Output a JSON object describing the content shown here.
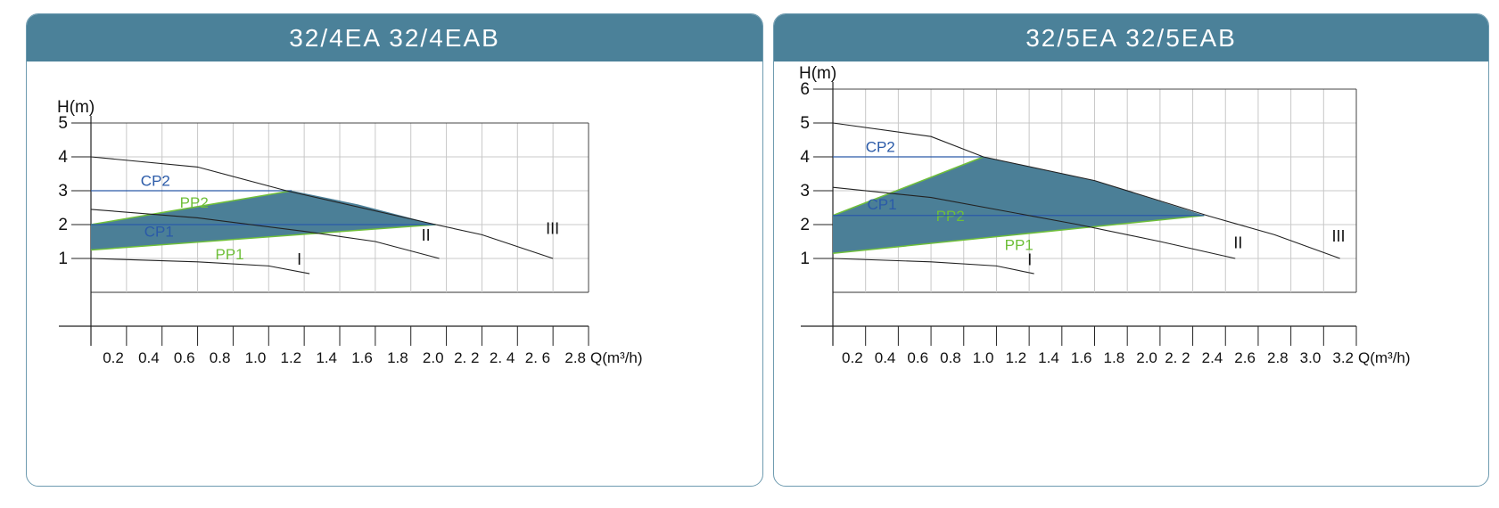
{
  "panels": [
    {
      "title": "32/4EA  32/4EAB",
      "chart_data": {
        "type": "line",
        "ylabel": "H(m)",
        "xlabel": "Q(m³/h)",
        "xlim": [
          0,
          2.8
        ],
        "ylim": [
          0,
          5
        ],
        "y_ticks": [
          "1",
          "2",
          "3",
          "4",
          "5"
        ],
        "x_ticks": [
          {
            "v": 0.2,
            "label": "0.2"
          },
          {
            "v": 0.4,
            "label": "0.4"
          },
          {
            "v": 0.6,
            "label": "0.6"
          },
          {
            "v": 0.8,
            "label": "0.8"
          },
          {
            "v": 1.0,
            "label": "1.0"
          },
          {
            "v": 1.2,
            "label": "1.2"
          },
          {
            "v": 1.4,
            "label": "1.4"
          },
          {
            "v": 1.6,
            "label": "1.6"
          },
          {
            "v": 1.8,
            "label": "1.8"
          },
          {
            "v": 2.0,
            "label": "2.0"
          },
          {
            "v": 2.2,
            "label": "2. 2"
          },
          {
            "v": 2.4,
            "label": "2. 4"
          },
          {
            "v": 2.6,
            "label": "2. 6"
          },
          {
            "v": 2.8,
            "label": "2.8"
          }
        ],
        "grid": true,
        "colors": {
          "fill": "#4b7f97",
          "cp": "#2a5aa8",
          "pp": "#6fbf3a",
          "curve": "#222222"
        },
        "curves": [
          {
            "name": "I",
            "points": [
              [
                0,
                1.0
              ],
              [
                0.6,
                0.9
              ],
              [
                1.0,
                0.78
              ],
              [
                1.23,
                0.55
              ]
            ],
            "label_at": [
              1.16,
              0.82
            ]
          },
          {
            "name": "II",
            "points": [
              [
                0,
                2.45
              ],
              [
                0.6,
                2.2
              ],
              [
                1.2,
                1.8
              ],
              [
                1.6,
                1.5
              ],
              [
                1.96,
                1.0
              ]
            ],
            "label_at": [
              1.86,
              1.52
            ]
          },
          {
            "name": "III",
            "points": [
              [
                0,
                4.0
              ],
              [
                0.6,
                3.7
              ],
              [
                1.1,
                3.0
              ],
              [
                1.94,
                2.0
              ],
              [
                2.2,
                1.7
              ],
              [
                2.6,
                1.0
              ]
            ],
            "label_at": [
              2.56,
              1.72
            ]
          }
        ],
        "cp_lines": [
          {
            "name": "CP2",
            "y": 3.0,
            "x_end": 1.13,
            "label_at": [
              0.28,
              3.15
            ]
          },
          {
            "name": "CP1",
            "y": 2.0,
            "x_end": 1.94,
            "label_at": [
              0.3,
              1.65
            ]
          }
        ],
        "pp_lines": [
          {
            "name": "PP2",
            "from": [
              0,
              2.0
            ],
            "to": [
              1.13,
              3.0
            ],
            "label_at": [
              0.5,
              2.5
            ]
          },
          {
            "name": "PP1",
            "from": [
              0,
              1.25
            ],
            "to": [
              1.94,
              2.0
            ],
            "label_at": [
              0.7,
              0.98
            ]
          }
        ],
        "region": [
          [
            0,
            2.0
          ],
          [
            1.13,
            3.0
          ],
          [
            1.5,
            2.6
          ],
          [
            1.94,
            2.0
          ],
          [
            0,
            1.25
          ]
        ]
      }
    },
    {
      "title": "32/5EA  32/5EAB",
      "chart_data": {
        "type": "line",
        "ylabel": "H(m)",
        "xlabel": "Q(m³/h)",
        "xlim": [
          0,
          3.2
        ],
        "ylim": [
          0,
          6
        ],
        "y_ticks": [
          "1",
          "2",
          "3",
          "4",
          "5",
          "6"
        ],
        "x_ticks": [
          {
            "v": 0.2,
            "label": "0.2"
          },
          {
            "v": 0.4,
            "label": "0.4"
          },
          {
            "v": 0.6,
            "label": "0.6"
          },
          {
            "v": 0.8,
            "label": "0.8"
          },
          {
            "v": 1.0,
            "label": "1.0"
          },
          {
            "v": 1.2,
            "label": "1.2"
          },
          {
            "v": 1.4,
            "label": "1.4"
          },
          {
            "v": 1.6,
            "label": "1.6"
          },
          {
            "v": 1.8,
            "label": "1.8"
          },
          {
            "v": 2.0,
            "label": "2.0"
          },
          {
            "v": 2.2,
            "label": "2. 2"
          },
          {
            "v": 2.4,
            "label": "2.4"
          },
          {
            "v": 2.6,
            "label": "2.6"
          },
          {
            "v": 2.8,
            "label": "2.8"
          },
          {
            "v": 3.0,
            "label": "3.0"
          },
          {
            "v": 3.2,
            "label": "3.2"
          }
        ],
        "grid": true,
        "colors": {
          "fill": "#4b7f97",
          "cp": "#2a5aa8",
          "pp": "#6fbf3a",
          "curve": "#222222"
        },
        "curves": [
          {
            "name": "I",
            "points": [
              [
                0,
                1.0
              ],
              [
                0.6,
                0.9
              ],
              [
                1.0,
                0.78
              ],
              [
                1.23,
                0.55
              ]
            ],
            "label_at": [
              1.19,
              0.8
            ]
          },
          {
            "name": "II",
            "points": [
              [
                0,
                3.1
              ],
              [
                0.6,
                2.8
              ],
              [
                1.5,
                2.0
              ],
              [
                2.0,
                1.5
              ],
              [
                2.46,
                1.0
              ]
            ],
            "label_at": [
              2.45,
              1.3
            ]
          },
          {
            "name": "III",
            "points": [
              [
                0,
                5.0
              ],
              [
                0.6,
                4.6
              ],
              [
                0.92,
                4.0
              ],
              [
                1.6,
                3.3
              ],
              [
                2.3,
                2.25
              ],
              [
                2.7,
                1.7
              ],
              [
                3.1,
                1.0
              ]
            ],
            "label_at": [
              3.05,
              1.5
            ]
          }
        ],
        "cp_lines": [
          {
            "name": "CP2",
            "y": 4.0,
            "x_end": 0.92,
            "label_at": [
              0.2,
              4.15
            ]
          },
          {
            "name": "CP1",
            "y": 2.27,
            "x_end": 2.27,
            "label_at": [
              0.21,
              2.45
            ]
          }
        ],
        "pp_lines": [
          {
            "name": "PP2",
            "from": [
              0,
              2.27
            ],
            "to": [
              0.92,
              4.0
            ],
            "label_at": [
              0.63,
              2.1
            ]
          },
          {
            "name": "PP1",
            "from": [
              0,
              1.15
            ],
            "to": [
              2.27,
              2.27
            ],
            "label_at": [
              1.05,
              1.25
            ]
          }
        ],
        "region": [
          [
            0,
            2.27
          ],
          [
            0.92,
            4.0
          ],
          [
            1.6,
            3.3
          ],
          [
            2.27,
            2.27
          ],
          [
            0,
            1.15
          ]
        ]
      }
    }
  ]
}
